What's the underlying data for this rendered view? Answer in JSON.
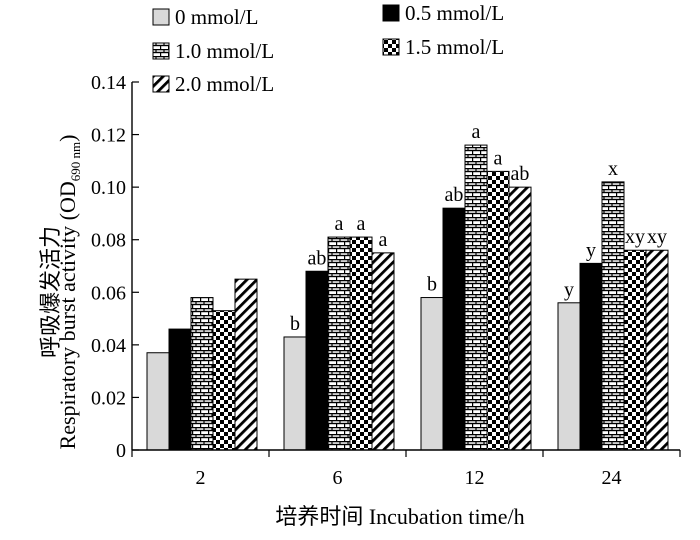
{
  "chart_data": {
    "type": "bar",
    "categories": [
      "2",
      "6",
      "12",
      "24"
    ],
    "series": [
      {
        "name": "0 mmol/L",
        "pattern": "light-gray",
        "values": [
          0.037,
          0.043,
          0.058,
          0.056
        ],
        "labels": [
          "",
          "b",
          "b",
          "y"
        ]
      },
      {
        "name": "0.5 mmol/L",
        "pattern": "solid-black",
        "values": [
          0.046,
          0.068,
          0.092,
          0.071
        ],
        "labels": [
          "",
          "ab",
          "ab",
          "y"
        ]
      },
      {
        "name": "1.0 mmol/L",
        "pattern": "horizontal-brick",
        "values": [
          0.058,
          0.081,
          0.116,
          0.102
        ],
        "labels": [
          "",
          "a",
          "a",
          "x"
        ]
      },
      {
        "name": "1.5 mmol/L",
        "pattern": "checkerboard",
        "values": [
          0.053,
          0.081,
          0.106,
          0.076
        ],
        "labels": [
          "",
          "a",
          "a",
          "xy"
        ]
      },
      {
        "name": "2.0 mmol/L",
        "pattern": "diagonal-hatch",
        "values": [
          0.065,
          0.075,
          0.1,
          0.076
        ],
        "labels": [
          "",
          "a",
          "ab",
          "xy"
        ]
      }
    ],
    "xlabel": "培养时间  Incubation time/h",
    "ylabel_cn": "呼吸爆发活力",
    "ylabel_en": "Respiratory burst activity (OD",
    "ylabel_sub": "690 nm",
    "ylabel_end": ")",
    "ylim": [
      0,
      0.14
    ],
    "yticks": [
      "0",
      "0.02",
      "0.04",
      "0.06",
      "0.08",
      "0.10",
      "0.12",
      "0.14"
    ],
    "ytick_values": [
      0,
      0.02,
      0.04,
      0.06,
      0.08,
      0.1,
      0.12,
      0.14
    ],
    "grid": false,
    "legend_position": "top-left",
    "colors": {
      "light": "#d9d9d9",
      "dark": "#000000",
      "white": "#ffffff"
    }
  }
}
